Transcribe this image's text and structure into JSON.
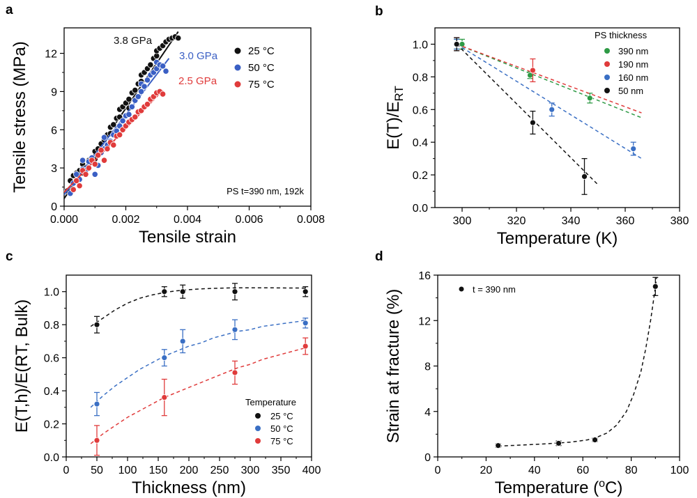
{
  "figure": {
    "panels": [
      {
        "label": "a"
      },
      {
        "label": "b"
      },
      {
        "label": "c"
      },
      {
        "label": "d"
      }
    ]
  },
  "chart_data": [
    {
      "panel": "a",
      "type": "scatter",
      "xlabel": "Tensile strain",
      "ylabel": "Tensile stress (MPa)",
      "xlim": [
        0,
        0.008
      ],
      "ylim": [
        0,
        14
      ],
      "xticks": [
        "0.000",
        "0.002",
        "0.004",
        "0.006",
        "0.008"
      ],
      "yticks": [
        "0",
        "3",
        "6",
        "9",
        "12"
      ],
      "legend_position": "top-right",
      "annotation": "PS t=390 nm, 192k",
      "series": [
        {
          "name": "25 °C",
          "color": "#111111",
          "fit_label": "3.8 GPa",
          "fit_x": [
            0,
            0.0037
          ],
          "fit_y": [
            0.6,
            13.7
          ],
          "points": [
            [
              0.0001,
              1.2
            ],
            [
              0.0002,
              2.0
            ],
            [
              0.0003,
              2.4
            ],
            [
              0.0004,
              2.6
            ],
            [
              0.0004,
              2.0
            ],
            [
              0.0005,
              2.8
            ],
            [
              0.0006,
              2.6
            ],
            [
              0.0006,
              3.3
            ],
            [
              0.0007,
              3.0
            ],
            [
              0.0008,
              3.6
            ],
            [
              0.0009,
              3.8
            ],
            [
              0.001,
              3.7
            ],
            [
              0.001,
              4.3
            ],
            [
              0.0011,
              4.5
            ],
            [
              0.0012,
              4.9
            ],
            [
              0.0012,
              4.2
            ],
            [
              0.0013,
              5.2
            ],
            [
              0.0014,
              5.6
            ],
            [
              0.0015,
              5.7
            ],
            [
              0.0015,
              6.2
            ],
            [
              0.0016,
              6.4
            ],
            [
              0.0017,
              6.9
            ],
            [
              0.0018,
              7.0
            ],
            [
              0.0018,
              7.6
            ],
            [
              0.0019,
              7.8
            ],
            [
              0.002,
              8.1
            ],
            [
              0.0021,
              8.4
            ],
            [
              0.0021,
              7.7
            ],
            [
              0.0022,
              8.9
            ],
            [
              0.0023,
              9.1
            ],
            [
              0.0024,
              9.6
            ],
            [
              0.0025,
              9.8
            ],
            [
              0.0025,
              10.3
            ],
            [
              0.0026,
              10.5
            ],
            [
              0.0027,
              10.8
            ],
            [
              0.0028,
              11.1
            ],
            [
              0.0029,
              11.6
            ],
            [
              0.003,
              11.8
            ],
            [
              0.003,
              12.2
            ],
            [
              0.0031,
              12.4
            ],
            [
              0.0032,
              12.6
            ],
            [
              0.0033,
              12.9
            ],
            [
              0.0034,
              13.1
            ],
            [
              0.0035,
              13.2
            ],
            [
              0.0036,
              13.3
            ],
            [
              0.0037,
              13.2
            ]
          ]
        },
        {
          "name": "50 °C",
          "color": "#3a5fc4",
          "fit_label": "3.0 GPa",
          "fit_x": [
            0,
            0.0034
          ],
          "fit_y": [
            0.9,
            11.6
          ],
          "points": [
            [
              0.0002,
              1.0
            ],
            [
              0.0003,
              1.8
            ],
            [
              0.0004,
              2.5
            ],
            [
              0.0005,
              2.1
            ],
            [
              0.0006,
              2.9
            ],
            [
              0.0006,
              3.6
            ],
            [
              0.0007,
              2.8
            ],
            [
              0.0008,
              3.5
            ],
            [
              0.0009,
              3.8
            ],
            [
              0.001,
              2.5
            ],
            [
              0.0011,
              3.2
            ],
            [
              0.0012,
              4.2
            ],
            [
              0.0013,
              4.5
            ],
            [
              0.0013,
              5.4
            ],
            [
              0.0014,
              4.8
            ],
            [
              0.0015,
              5.1
            ],
            [
              0.0016,
              5.6
            ],
            [
              0.0017,
              5.9
            ],
            [
              0.0018,
              6.3
            ],
            [
              0.0019,
              6.7
            ],
            [
              0.002,
              7.1
            ],
            [
              0.0021,
              7.2
            ],
            [
              0.0022,
              7.8
            ],
            [
              0.0023,
              8.3
            ],
            [
              0.0024,
              8.6
            ],
            [
              0.0025,
              9.0
            ],
            [
              0.0025,
              9.6
            ],
            [
              0.0026,
              9.4
            ],
            [
              0.0027,
              9.9
            ],
            [
              0.0028,
              10.3
            ],
            [
              0.0029,
              10.5
            ],
            [
              0.003,
              10.8
            ],
            [
              0.003,
              11.3
            ],
            [
              0.0031,
              11.1
            ],
            [
              0.0032,
              11.0
            ],
            [
              0.0033,
              10.6
            ]
          ]
        },
        {
          "name": "75 °C",
          "color": "#e03b3b",
          "fit_label": "2.5 GPa",
          "fit_x": [
            0,
            0.0032
          ],
          "fit_y": [
            1.1,
            9.1
          ],
          "points": [
            [
              0.0003,
              1.3
            ],
            [
              0.0004,
              2.0
            ],
            [
              0.0005,
              1.6
            ],
            [
              0.0006,
              2.8
            ],
            [
              0.0007,
              2.5
            ],
            [
              0.0008,
              3.0
            ],
            [
              0.0009,
              3.6
            ],
            [
              0.001,
              3.3
            ],
            [
              0.0011,
              4.0
            ],
            [
              0.0012,
              4.4
            ],
            [
              0.0013,
              3.6
            ],
            [
              0.0014,
              4.5
            ],
            [
              0.0015,
              5.0
            ],
            [
              0.0016,
              4.8
            ],
            [
              0.0017,
              5.5
            ],
            [
              0.0018,
              5.6
            ],
            [
              0.0019,
              6.0
            ],
            [
              0.002,
              6.3
            ],
            [
              0.0021,
              6.6
            ],
            [
              0.0022,
              6.8
            ],
            [
              0.0023,
              7.0
            ],
            [
              0.0024,
              7.4
            ],
            [
              0.0025,
              7.5
            ],
            [
              0.0026,
              7.8
            ],
            [
              0.0027,
              8.0
            ],
            [
              0.0028,
              8.4
            ],
            [
              0.0029,
              8.6
            ],
            [
              0.003,
              8.9
            ],
            [
              0.0031,
              9.0
            ],
            [
              0.0032,
              8.8
            ]
          ]
        }
      ]
    },
    {
      "panel": "b",
      "type": "scatter",
      "xlabel": "Temperature (K)",
      "ylabel": "E(T)/E",
      "ylabel_sub": "RT",
      "xlim": [
        290,
        380
      ],
      "ylim": [
        0,
        1.1
      ],
      "xticks": [
        "300",
        "320",
        "340",
        "360",
        "380"
      ],
      "yticks": [
        "0.0",
        "0.2",
        "0.4",
        "0.6",
        "0.8",
        "1.0"
      ],
      "legend_title": "PS thickness",
      "legend_position": "top-right",
      "series": [
        {
          "name": "390 nm",
          "color": "#2e9a45",
          "points": [
            [
              298,
              1.0,
              0.03
            ],
            [
              300,
              1.0,
              0.03
            ],
            [
              325,
              0.81,
              0.02
            ],
            [
              347,
              0.67,
              0.03
            ]
          ],
          "fit_x": [
            298,
            366
          ],
          "fit_y": [
            1.0,
            0.55
          ]
        },
        {
          "name": "190 nm",
          "color": "#e03b3b",
          "points": [
            [
              298,
              1.0,
              0.04
            ],
            [
              326,
              0.84,
              0.07
            ]
          ],
          "fit_x": [
            298,
            366
          ],
          "fit_y": [
            1.0,
            0.58
          ]
        },
        {
          "name": "160 nm",
          "color": "#3a6fc4",
          "points": [
            [
              298,
              1.0,
              0.03
            ],
            [
              333,
              0.6,
              0.04
            ],
            [
              363,
              0.36,
              0.04
            ]
          ],
          "fit_x": [
            298,
            366
          ],
          "fit_y": [
            1.0,
            0.3
          ]
        },
        {
          "name": "50 nm",
          "color": "#111111",
          "points": [
            [
              298,
              1.0,
              0.04
            ],
            [
              326,
              0.52,
              0.07
            ],
            [
              345,
              0.19,
              0.11
            ]
          ],
          "fit_x": [
            298,
            350
          ],
          "fit_y": [
            1.0,
            0.14
          ]
        }
      ]
    },
    {
      "panel": "c",
      "type": "scatter",
      "xlabel": "Thickness (nm)",
      "ylabel": "E(T,h)/E(RT, Bulk)",
      "xlim": [
        0,
        400
      ],
      "ylim": [
        0,
        1.1
      ],
      "xticks": [
        "0",
        "50",
        "100",
        "150",
        "200",
        "250",
        "300",
        "350",
        "400"
      ],
      "yticks": [
        "0.0",
        "0.2",
        "0.4",
        "0.6",
        "0.8",
        "1.0"
      ],
      "legend_title": "Temperature",
      "legend_position": "bottom-right",
      "series": [
        {
          "name": "25 °C",
          "color": "#111111",
          "points": [
            [
              50,
              0.8,
              0.05
            ],
            [
              160,
              1.0,
              0.03
            ],
            [
              190,
              1.0,
              0.04
            ],
            [
              275,
              1.0,
              0.05
            ],
            [
              390,
              1.0,
              0.03
            ]
          ],
          "fit_x": [
            40,
            60,
            80,
            100,
            120,
            140,
            160,
            180,
            200,
            220,
            240,
            260,
            280,
            300,
            320,
            340,
            360,
            380,
            390
          ],
          "fit_y": [
            0.79,
            0.84,
            0.89,
            0.93,
            0.96,
            0.98,
            0.995,
            1.005,
            1.012,
            1.017,
            1.02,
            1.022,
            1.023,
            1.023,
            1.023,
            1.023,
            1.022,
            1.022,
            1.021
          ]
        },
        {
          "name": "50 °C",
          "color": "#3a6fc4",
          "points": [
            [
              50,
              0.32,
              0.07
            ],
            [
              160,
              0.6,
              0.05
            ],
            [
              190,
              0.7,
              0.07
            ],
            [
              275,
              0.77,
              0.06
            ],
            [
              390,
              0.81,
              0.03
            ]
          ],
          "fit_x": [
            40,
            60,
            80,
            100,
            120,
            140,
            160,
            180,
            200,
            220,
            240,
            260,
            280,
            300,
            320,
            340,
            360,
            380,
            390
          ],
          "fit_y": [
            0.3,
            0.37,
            0.43,
            0.48,
            0.53,
            0.57,
            0.61,
            0.64,
            0.67,
            0.69,
            0.72,
            0.74,
            0.76,
            0.77,
            0.79,
            0.8,
            0.81,
            0.82,
            0.83
          ]
        },
        {
          "name": "75 °C",
          "color": "#e03b3b",
          "points": [
            [
              50,
              0.1,
              0.09
            ],
            [
              160,
              0.36,
              0.11
            ],
            [
              275,
              0.51,
              0.07
            ],
            [
              390,
              0.67,
              0.05
            ]
          ],
          "fit_x": [
            40,
            60,
            80,
            100,
            120,
            140,
            160,
            180,
            200,
            220,
            240,
            260,
            280,
            300,
            320,
            340,
            360,
            380,
            390
          ],
          "fit_y": [
            0.08,
            0.14,
            0.19,
            0.24,
            0.28,
            0.32,
            0.36,
            0.39,
            0.42,
            0.45,
            0.48,
            0.51,
            0.54,
            0.56,
            0.59,
            0.61,
            0.63,
            0.65,
            0.66
          ]
        }
      ]
    },
    {
      "panel": "d",
      "type": "scatter",
      "xlabel": "Temperature (",
      "xlabel_sup": "o",
      "xlabel_suffix": "C)",
      "ylabel": "Strain at fracture (%)",
      "xlim": [
        0,
        100
      ],
      "ylim": [
        0,
        16
      ],
      "xticks": [
        "0",
        "20",
        "40",
        "60",
        "80",
        "100"
      ],
      "yticks": [
        "0",
        "4",
        "8",
        "12",
        "16"
      ],
      "legend_position": "top-left",
      "series": [
        {
          "name": "t = 390 nm",
          "color": "#111111",
          "points": [
            [
              25,
              1.0,
              0.15
            ],
            [
              50,
              1.2,
              0.2
            ],
            [
              65,
              1.5,
              0.15
            ],
            [
              90,
              15.0,
              0.8
            ]
          ],
          "fit_x": [
            25,
            35,
            45,
            55,
            62,
            66,
            70,
            74,
            78,
            81,
            84,
            86,
            88,
            89.5,
            90.5
          ],
          "fit_y": [
            0.95,
            1.05,
            1.15,
            1.3,
            1.5,
            1.75,
            2.1,
            2.8,
            4.0,
            5.5,
            7.5,
            9.5,
            12.0,
            14.2,
            15.8
          ]
        }
      ]
    }
  ]
}
